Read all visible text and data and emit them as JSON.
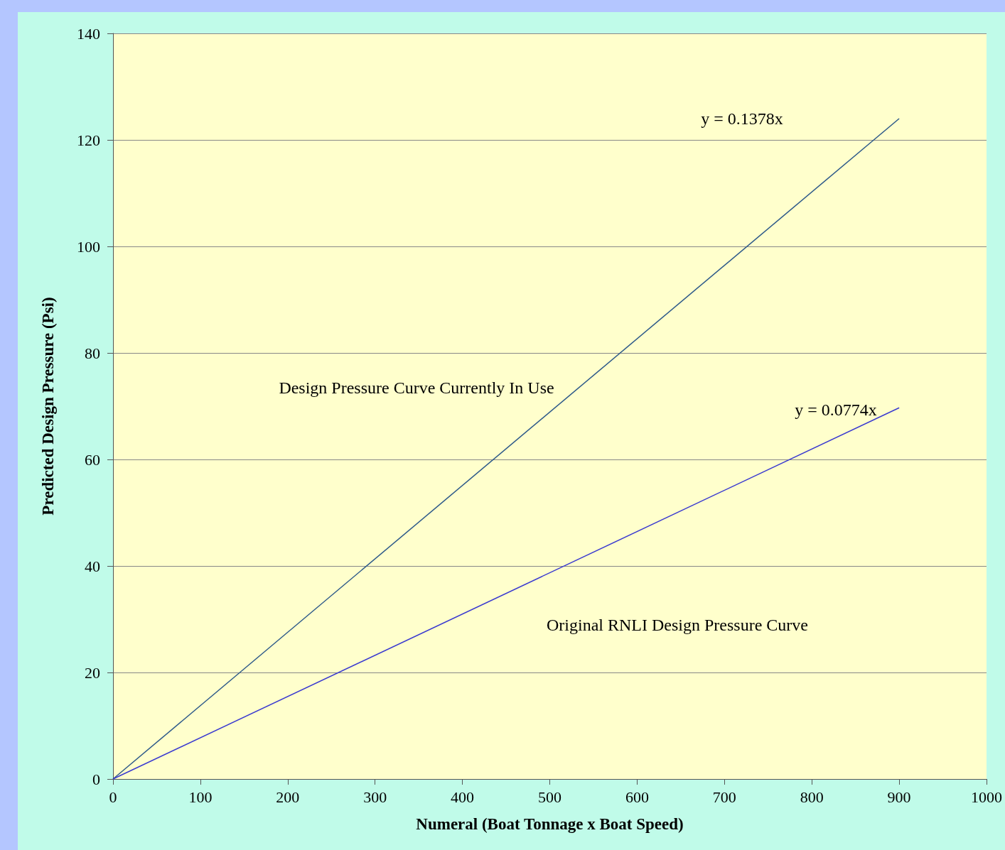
{
  "chart_data": {
    "type": "line",
    "xlabel": "Numeral (Boat Tonnage x Boat Speed)",
    "ylabel": "Predicted Design Pressure (Psi)",
    "series": [
      {
        "color": "#2e5a8a",
        "values": [
          0,
          124
        ]
      },
      {
        "color": "#3a3ad0",
        "values": [
          0,
          69.7
        ]
      }
    ],
    "x": [
      0,
      900
    ],
    "annotations": [
      "y = 0.1378x",
      "Design Pressure Curve Currently In Use",
      "y = 0.0774x",
      "Original RNLI Design Pressure Curve"
    ],
    "xlim": [
      0,
      1000
    ],
    "xticks": [
      0,
      100,
      200,
      300,
      400,
      500,
      600,
      700,
      800,
      900,
      1000
    ],
    "ylim": [
      0,
      140
    ],
    "yticks": [
      0,
      20,
      40,
      60,
      80,
      100,
      120,
      140
    ],
    "grid": "y",
    "marker": "none",
    "line_style": "solid"
  }
}
